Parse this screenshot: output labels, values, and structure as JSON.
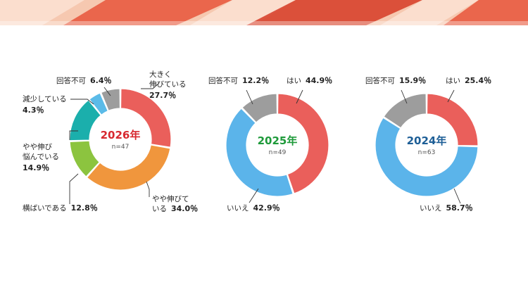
{
  "colors": {
    "banner_base": "#f6c8b0",
    "banner_stripe": "#e8553b",
    "banner_stripe_dark": "#d63b26",
    "banner_light": "#fbe2d4"
  },
  "chart_data": [
    {
      "type": "pie",
      "center_title": "2026年",
      "center_title_color": "#d7282f",
      "center_n": "n=47",
      "slices": [
        {
          "name_lines": [
            "大きく",
            "伸びている"
          ],
          "value": 27.7,
          "label": "27.7％",
          "color": "#ea5f5b"
        },
        {
          "name_lines": [
            "やや伸びて",
            "いる"
          ],
          "value": 34.0,
          "label": "34.0％",
          "color": "#f0963d"
        },
        {
          "name_lines": [
            "横ばいである"
          ],
          "value": 12.8,
          "label": "12.8％",
          "color": "#8cc43f"
        },
        {
          "name_lines": [
            "やや伸び",
            "悩んでいる"
          ],
          "value": 14.9,
          "label": "14.9％",
          "color": "#1bafac"
        },
        {
          "name_lines": [
            "減少している"
          ],
          "value": 4.3,
          "label": "4.3％",
          "color": "#5bbbe8"
        },
        {
          "name_lines": [
            "回答不可"
          ],
          "value": 6.4,
          "label": "6.4％",
          "color": "#9d9d9d"
        }
      ]
    },
    {
      "type": "pie",
      "center_title": "2025年",
      "center_title_color": "#1e9a3a",
      "center_n": "n=49",
      "slices": [
        {
          "name_lines": [
            "はい"
          ],
          "value": 44.9,
          "label": "44.9％",
          "color": "#ea5f5b"
        },
        {
          "name_lines": [
            "いいえ"
          ],
          "value": 42.9,
          "label": "42.9％",
          "color": "#5bb4ea"
        },
        {
          "name_lines": [
            "回答不可"
          ],
          "value": 12.2,
          "label": "12.2％",
          "color": "#9d9d9d"
        }
      ]
    },
    {
      "type": "pie",
      "center_title": "2024年",
      "center_title_color": "#1d5e96",
      "center_n": "n=63",
      "slices": [
        {
          "name_lines": [
            "はい"
          ],
          "value": 25.4,
          "label": "25.4％",
          "color": "#ea5f5b"
        },
        {
          "name_lines": [
            "いいえ"
          ],
          "value": 58.7,
          "label": "58.7％",
          "color": "#5bb4ea"
        },
        {
          "name_lines": [
            "回答不可"
          ],
          "value": 15.9,
          "label": "15.9％",
          "color": "#9d9d9d"
        }
      ]
    }
  ]
}
